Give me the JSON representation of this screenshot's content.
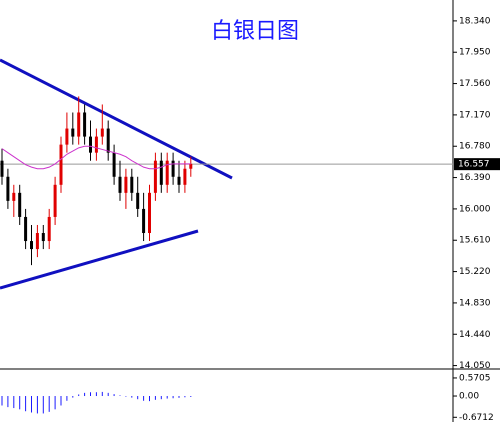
{
  "chart_data": [
    {
      "type": "candlestick",
      "title": "白银日图",
      "up_color": "#e00000",
      "down_color": "#000000",
      "ma_color": "#cc33cc",
      "open": [
        16.6,
        16.4,
        16.1,
        16.2,
        15.9,
        15.6,
        15.5,
        15.7,
        15.6,
        15.9,
        16.3,
        16.8,
        17.0,
        16.9,
        17.2,
        16.9,
        16.7,
        16.9,
        17.0,
        16.7,
        16.4,
        16.2,
        16.4,
        16.2,
        16.0,
        15.7,
        16.2,
        16.6,
        16.3,
        16.6,
        16.4,
        16.3,
        16.5
      ],
      "high": [
        16.75,
        16.5,
        16.3,
        16.3,
        16.0,
        15.8,
        15.8,
        15.8,
        16.0,
        16.4,
        16.9,
        17.2,
        17.2,
        17.4,
        17.3,
        17.1,
        17.0,
        17.3,
        17.1,
        16.8,
        16.6,
        16.5,
        16.5,
        16.4,
        16.2,
        16.3,
        16.7,
        16.7,
        16.7,
        16.7,
        16.6,
        16.6,
        16.65
      ],
      "low": [
        16.3,
        16.0,
        15.9,
        15.8,
        15.5,
        15.3,
        15.4,
        15.5,
        15.5,
        15.8,
        16.2,
        16.7,
        16.8,
        16.8,
        16.8,
        16.6,
        16.6,
        16.8,
        16.6,
        16.3,
        16.1,
        16.0,
        16.1,
        15.9,
        15.6,
        15.6,
        16.1,
        16.2,
        16.2,
        16.3,
        16.2,
        16.2,
        16.4
      ],
      "close": [
        16.4,
        16.1,
        16.2,
        15.9,
        15.6,
        15.5,
        15.7,
        15.6,
        15.9,
        16.3,
        16.8,
        17.0,
        16.9,
        17.2,
        16.9,
        16.7,
        16.9,
        17.0,
        16.7,
        16.4,
        16.2,
        16.4,
        16.2,
        16.0,
        15.7,
        16.2,
        16.6,
        16.3,
        16.6,
        16.4,
        16.3,
        16.5,
        16.56
      ],
      "ma": [
        16.75,
        16.7,
        16.65,
        16.6,
        16.55,
        16.52,
        16.5,
        16.5,
        16.52,
        16.56,
        16.62,
        16.68,
        16.72,
        16.76,
        16.78,
        16.78,
        16.76,
        16.74,
        16.72,
        16.7,
        16.68,
        16.65,
        16.6,
        16.56,
        16.52,
        16.5,
        16.5,
        16.52,
        16.55,
        16.56,
        16.56,
        16.56,
        16.56
      ],
      "last_price": 16.557,
      "ylim": [
        14.02,
        18.6
      ],
      "yticks": [
        {
          "value": 18.34,
          "label": "18.340"
        },
        {
          "value": 17.95,
          "label": "17.950"
        },
        {
          "value": 17.56,
          "label": "17.560"
        },
        {
          "value": 17.17,
          "label": "17.170"
        },
        {
          "value": 16.78,
          "label": "16.780"
        },
        {
          "value": 16.39,
          "label": "16.390"
        },
        {
          "value": 16.0,
          "label": "16.000"
        },
        {
          "value": 15.61,
          "label": "15.610"
        },
        {
          "value": 15.22,
          "label": "15.220"
        },
        {
          "value": 14.83,
          "label": "14.830"
        },
        {
          "value": 14.44,
          "label": "14.440"
        },
        {
          "value": 14.05,
          "label": "14.050"
        }
      ]
    },
    {
      "type": "histogram-indicator",
      "color": "#1a1aff",
      "values": [
        -0.3,
        -0.35,
        -0.38,
        -0.42,
        -0.48,
        -0.52,
        -0.55,
        -0.55,
        -0.5,
        -0.42,
        -0.3,
        -0.15,
        -0.05,
        0.05,
        0.1,
        0.12,
        0.12,
        0.13,
        0.1,
        0.06,
        0.02,
        -0.02,
        -0.05,
        -0.1,
        -0.15,
        -0.16,
        -0.12,
        -0.1,
        -0.08,
        -0.07,
        -0.06,
        -0.04,
        -0.03
      ],
      "ylim": [
        -0.82,
        0.79
      ],
      "yticks": [
        0.5705,
        {
          "value": 0,
          "label": "0.00"
        },
        -0.6712
      ]
    }
  ]
}
